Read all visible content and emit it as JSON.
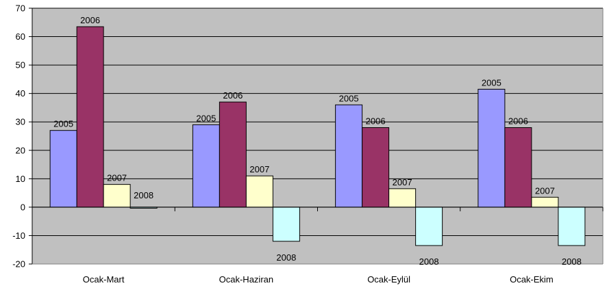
{
  "chart_data": {
    "type": "bar",
    "title": "",
    "xlabel": "",
    "ylabel": "",
    "categories": [
      "Ocak-Mart",
      "Ocak-Haziran",
      "Ocak-Eylül",
      "Ocak-Ekim"
    ],
    "series": [
      {
        "name": "2005",
        "values": [
          27,
          29,
          36,
          41.5
        ],
        "color": "#9999FF"
      },
      {
        "name": "2006",
        "values": [
          63.5,
          37,
          28,
          28
        ],
        "color": "#993366"
      },
      {
        "name": "2007",
        "values": [
          8,
          11,
          6.5,
          3.5
        ],
        "color": "#FFFFCC"
      },
      {
        "name": "2008",
        "values": [
          -0.3,
          -12,
          -13.5,
          -13.5
        ],
        "color": "#CCFFFF"
      }
    ],
    "ylim": [
      -20,
      70
    ],
    "yticks": [
      -20,
      -10,
      0,
      10,
      20,
      30,
      40,
      50,
      60,
      70
    ],
    "grid": true,
    "legend": "none",
    "data_labels": "series name",
    "plot_background": "#C0C0C0"
  }
}
